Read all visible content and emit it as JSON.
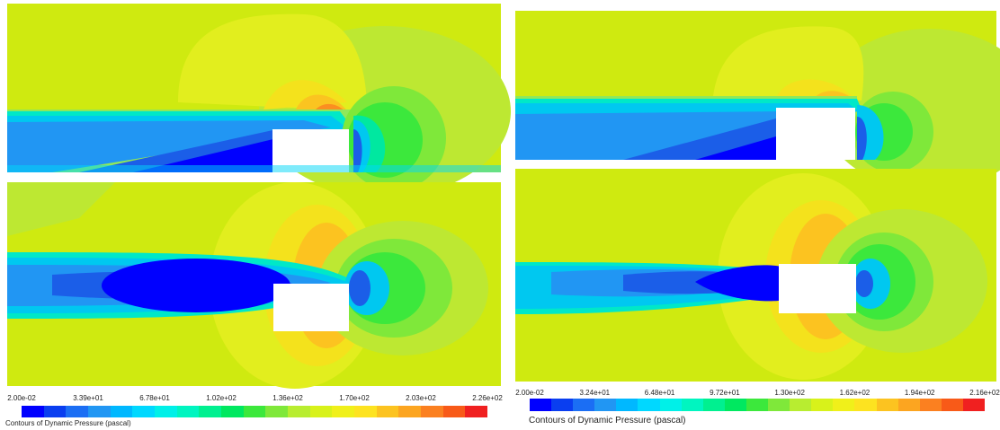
{
  "colors": {
    "background": "#cfea10",
    "contour_scale": [
      "#0000ff",
      "#0a3ef0",
      "#1b6ef4",
      "#2196f3",
      "#00b8ff",
      "#00d8ff",
      "#00f0e8",
      "#00f5c0",
      "#00f090",
      "#00e860",
      "#3ce83c",
      "#7fe83a",
      "#b8ed30",
      "#d8f21a",
      "#f0f01a",
      "#fde320",
      "#fcc320",
      "#fca520",
      "#fb8020",
      "#f85a18",
      "#f02020"
    ]
  },
  "left_colorbar": {
    "ticks": [
      "2.00e-02",
      "3.39e+01",
      "6.78e+01",
      "1.02e+02",
      "1.36e+02",
      "1.70e+02",
      "2.03e+02",
      "2.26e+02"
    ],
    "title": "Contours of Dynamic Pressure (pascal)"
  },
  "right_colorbar": {
    "ticks": [
      "2.00e-02",
      "3.24e+01",
      "6.48e+01",
      "9.72e+01",
      "1.30e+02",
      "1.62e+02",
      "1.94e+02",
      "2.16e+02"
    ],
    "title": "Contours of Dynamic Pressure (pascal)"
  }
}
